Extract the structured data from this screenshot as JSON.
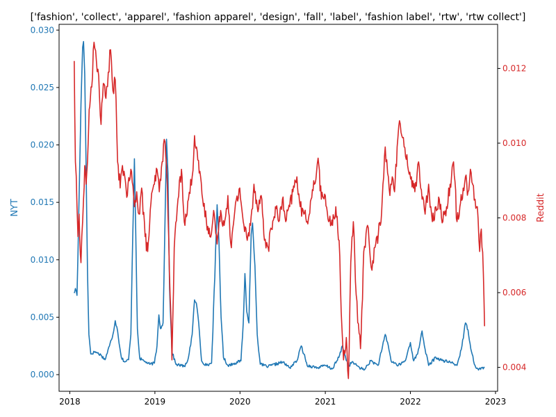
{
  "chart_data": {
    "type": "line",
    "title": "['fashion', 'collect', 'apparel', 'fashion apparel', 'design', 'fall', 'label', 'fashion label', 'rtw', 'rtw collect']",
    "xlabel": "",
    "x_ticks": [
      "2018",
      "2019",
      "2020",
      "2021",
      "2022",
      "2023"
    ],
    "xlim": [
      "2017-11-16",
      "2023-01-10"
    ],
    "left_axis": {
      "label": "NYT",
      "color": "#1f77b4",
      "ylim": [
        -0.00145,
        0.0305
      ],
      "ticks": [
        "0.000",
        "0.005",
        "0.010",
        "0.015",
        "0.020",
        "0.025",
        "0.030"
      ]
    },
    "right_axis": {
      "label": "Reddit",
      "color": "#d62728",
      "ylim": [
        0.00336,
        0.01318
      ],
      "ticks": [
        "0.004",
        "0.006",
        "0.008",
        "0.010",
        "0.012"
      ]
    },
    "grid": false,
    "series": [
      {
        "name": "NYT",
        "axis": "left",
        "color": "#1f77b4",
        "points": [
          [
            "2018-01-20",
            0.0071
          ],
          [
            "2018-01-25",
            0.0075
          ],
          [
            "2018-02-01",
            0.0069
          ],
          [
            "2018-02-05",
            0.0105
          ],
          [
            "2018-02-12",
            0.0175
          ],
          [
            "2018-02-18",
            0.0235
          ],
          [
            "2018-02-25",
            0.0285
          ],
          [
            "2018-03-01",
            0.029
          ],
          [
            "2018-03-06",
            0.0262
          ],
          [
            "2018-03-12",
            0.018
          ],
          [
            "2018-03-18",
            0.009
          ],
          [
            "2018-03-24",
            0.0035
          ],
          [
            "2018-04-01",
            0.0018
          ],
          [
            "2018-04-20",
            0.002
          ],
          [
            "2018-05-15",
            0.0017
          ],
          [
            "2018-06-01",
            0.0013
          ],
          [
            "2018-06-20",
            0.0025
          ],
          [
            "2018-07-05",
            0.0035
          ],
          [
            "2018-07-15",
            0.0047
          ],
          [
            "2018-07-25",
            0.0038
          ],
          [
            "2018-08-10",
            0.0015
          ],
          [
            "2018-08-25",
            0.0011
          ],
          [
            "2018-09-10",
            0.0013
          ],
          [
            "2018-09-20",
            0.0035
          ],
          [
            "2018-09-28",
            0.012
          ],
          [
            "2018-10-05",
            0.0188
          ],
          [
            "2018-10-10",
            0.0135
          ],
          [
            "2018-10-18",
            0.004
          ],
          [
            "2018-10-28",
            0.0014
          ],
          [
            "2018-11-15",
            0.0012
          ],
          [
            "2018-12-10",
            0.0009
          ],
          [
            "2018-12-30",
            0.001
          ],
          [
            "2019-01-10",
            0.0025
          ],
          [
            "2019-01-18",
            0.0052
          ],
          [
            "2019-01-25",
            0.004
          ],
          [
            "2019-02-05",
            0.0045
          ],
          [
            "2019-02-12",
            0.012
          ],
          [
            "2019-02-20",
            0.0205
          ],
          [
            "2019-02-26",
            0.0175
          ],
          [
            "2019-03-05",
            0.0075
          ],
          [
            "2019-03-15",
            0.002
          ],
          [
            "2019-04-01",
            0.0009
          ],
          [
            "2019-04-25",
            0.0008
          ],
          [
            "2019-05-10",
            0.0007
          ],
          [
            "2019-05-25",
            0.0015
          ],
          [
            "2019-06-10",
            0.0035
          ],
          [
            "2019-06-20",
            0.0065
          ],
          [
            "2019-06-28",
            0.0062
          ],
          [
            "2019-07-08",
            0.0045
          ],
          [
            "2019-07-20",
            0.0012
          ],
          [
            "2019-08-10",
            0.0008
          ],
          [
            "2019-09-01",
            0.001
          ],
          [
            "2019-09-15",
            0.0085
          ],
          [
            "2019-09-25",
            0.0148
          ],
          [
            "2019-10-03",
            0.0115
          ],
          [
            "2019-10-12",
            0.005
          ],
          [
            "2019-10-22",
            0.0015
          ],
          [
            "2019-11-10",
            0.0008
          ],
          [
            "2019-12-10",
            0.001
          ],
          [
            "2020-01-05",
            0.0012
          ],
          [
            "2020-01-15",
            0.0045
          ],
          [
            "2020-01-22",
            0.0088
          ],
          [
            "2020-01-30",
            0.0055
          ],
          [
            "2020-02-08",
            0.0045
          ],
          [
            "2020-02-18",
            0.0122
          ],
          [
            "2020-02-24",
            0.0132
          ],
          [
            "2020-03-05",
            0.0095
          ],
          [
            "2020-03-15",
            0.0035
          ],
          [
            "2020-03-28",
            0.0009
          ],
          [
            "2020-05-01",
            0.0007
          ],
          [
            "2020-07-01",
            0.0011
          ],
          [
            "2020-08-01",
            0.0006
          ],
          [
            "2020-09-01",
            0.0012
          ],
          [
            "2020-09-20",
            0.0025
          ],
          [
            "2020-10-01",
            0.0018
          ],
          [
            "2020-10-15",
            0.0008
          ],
          [
            "2020-12-01",
            0.0006
          ],
          [
            "2020-12-31",
            0.0008
          ],
          [
            "2021-01-31",
            0.0005
          ],
          [
            "2021-02-28",
            0.0015
          ],
          [
            "2021-03-15",
            0.0025
          ],
          [
            "2021-03-25",
            0.0018
          ],
          [
            "2021-04-10",
            0.0007
          ],
          [
            "2021-04-25",
            0.0011
          ],
          [
            "2021-05-15",
            0.0008
          ],
          [
            "2021-06-15",
            0.0004
          ],
          [
            "2021-07-15",
            0.0012
          ],
          [
            "2021-08-15",
            0.0008
          ],
          [
            "2021-09-01",
            0.0022
          ],
          [
            "2021-09-15",
            0.0035
          ],
          [
            "2021-09-25",
            0.0028
          ],
          [
            "2021-10-10",
            0.0012
          ],
          [
            "2021-11-10",
            0.0008
          ],
          [
            "2021-12-10",
            0.0012
          ],
          [
            "2022-01-01",
            0.0028
          ],
          [
            "2022-01-15",
            0.0012
          ],
          [
            "2022-02-01",
            0.0018
          ],
          [
            "2022-02-20",
            0.0038
          ],
          [
            "2022-03-05",
            0.0022
          ],
          [
            "2022-03-20",
            0.0008
          ],
          [
            "2022-04-20",
            0.0015
          ],
          [
            "2022-05-20",
            0.0012
          ],
          [
            "2022-06-20",
            0.0011
          ],
          [
            "2022-07-20",
            0.0008
          ],
          [
            "2022-08-10",
            0.0025
          ],
          [
            "2022-08-25",
            0.0045
          ],
          [
            "2022-09-05",
            0.0039
          ],
          [
            "2022-09-20",
            0.002
          ],
          [
            "2022-10-05",
            0.0008
          ],
          [
            "2022-10-20",
            0.0004
          ],
          [
            "2022-11-01",
            0.0006
          ],
          [
            "2022-11-15",
            0.0006
          ]
        ]
      },
      {
        "name": "Reddit",
        "axis": "right",
        "color": "#d62728",
        "points": [
          [
            "2018-01-20",
            0.0122
          ],
          [
            "2018-01-25",
            0.0095
          ],
          [
            "2018-02-01",
            0.0083
          ],
          [
            "2018-02-05",
            0.0075
          ],
          [
            "2018-02-10",
            0.0081
          ],
          [
            "2018-02-18",
            0.0068
          ],
          [
            "2018-02-25",
            0.0079
          ],
          [
            "2018-03-01",
            0.0085
          ],
          [
            "2018-03-06",
            0.0094
          ],
          [
            "2018-03-12",
            0.0089
          ],
          [
            "2018-03-18",
            0.0095
          ],
          [
            "2018-03-25",
            0.0109
          ],
          [
            "2018-04-05",
            0.0115
          ],
          [
            "2018-04-15",
            0.0127
          ],
          [
            "2018-04-25",
            0.0122
          ],
          [
            "2018-05-05",
            0.0118
          ],
          [
            "2018-05-15",
            0.0105
          ],
          [
            "2018-05-25",
            0.0116
          ],
          [
            "2018-06-05",
            0.0112
          ],
          [
            "2018-06-15",
            0.0119
          ],
          [
            "2018-06-25",
            0.0125
          ],
          [
            "2018-07-05",
            0.0114
          ],
          [
            "2018-07-15",
            0.0117
          ],
          [
            "2018-07-25",
            0.0095
          ],
          [
            "2018-08-05",
            0.0088
          ],
          [
            "2018-08-15",
            0.0094
          ],
          [
            "2018-08-25",
            0.0091
          ],
          [
            "2018-09-05",
            0.0086
          ],
          [
            "2018-09-20",
            0.0093
          ],
          [
            "2018-10-05",
            0.0083
          ],
          [
            "2018-10-15",
            0.0087
          ],
          [
            "2018-10-25",
            0.0081
          ],
          [
            "2018-11-05",
            0.0088
          ],
          [
            "2018-11-20",
            0.0075
          ],
          [
            "2018-12-01",
            0.0071
          ],
          [
            "2018-12-15",
            0.0084
          ],
          [
            "2018-12-30",
            0.0089
          ],
          [
            "2019-01-10",
            0.0093
          ],
          [
            "2019-01-20",
            0.0087
          ],
          [
            "2019-02-01",
            0.0095
          ],
          [
            "2019-02-10",
            0.0101
          ],
          [
            "2019-02-20",
            0.0094
          ],
          [
            "2019-03-01",
            0.0075
          ],
          [
            "2019-03-10",
            0.0055
          ],
          [
            "2019-03-15",
            0.0042
          ],
          [
            "2019-03-25",
            0.0072
          ],
          [
            "2019-04-10",
            0.0085
          ],
          [
            "2019-04-25",
            0.0093
          ],
          [
            "2019-05-10",
            0.0078
          ],
          [
            "2019-05-25",
            0.0085
          ],
          [
            "2019-06-10",
            0.0091
          ],
          [
            "2019-06-20",
            0.0102
          ],
          [
            "2019-07-01",
            0.0098
          ],
          [
            "2019-07-10",
            0.0092
          ],
          [
            "2019-07-25",
            0.0085
          ],
          [
            "2019-08-10",
            0.0079
          ],
          [
            "2019-08-25",
            0.0075
          ],
          [
            "2019-09-10",
            0.0082
          ],
          [
            "2019-09-25",
            0.0073
          ],
          [
            "2019-10-10",
            0.0082
          ],
          [
            "2019-10-25",
            0.0078
          ],
          [
            "2019-11-10",
            0.0086
          ],
          [
            "2019-11-25",
            0.0072
          ],
          [
            "2019-12-10",
            0.0082
          ],
          [
            "2019-12-31",
            0.0088
          ],
          [
            "2020-01-15",
            0.0079
          ],
          [
            "2020-02-01",
            0.0074
          ],
          [
            "2020-02-15",
            0.0078
          ],
          [
            "2020-03-01",
            0.0089
          ],
          [
            "2020-03-15",
            0.0083
          ],
          [
            "2020-04-01",
            0.0086
          ],
          [
            "2020-04-15",
            0.0074
          ],
          [
            "2020-05-01",
            0.0072
          ],
          [
            "2020-05-15",
            0.0077
          ],
          [
            "2020-06-01",
            0.0083
          ],
          [
            "2020-06-15",
            0.0079
          ],
          [
            "2020-07-01",
            0.0085
          ],
          [
            "2020-07-15",
            0.0079
          ],
          [
            "2020-08-01",
            0.0083
          ],
          [
            "2020-08-15",
            0.0087
          ],
          [
            "2020-09-01",
            0.0091
          ],
          [
            "2020-09-15",
            0.0083
          ],
          [
            "2020-10-01",
            0.0081
          ],
          [
            "2020-10-15",
            0.0079
          ],
          [
            "2020-11-01",
            0.0085
          ],
          [
            "2020-11-15",
            0.0089
          ],
          [
            "2020-12-01",
            0.0096
          ],
          [
            "2020-12-15",
            0.0085
          ],
          [
            "2021-01-01",
            0.0086
          ],
          [
            "2021-01-15",
            0.0079
          ],
          [
            "2021-02-01",
            0.0078
          ],
          [
            "2021-02-15",
            0.0083
          ],
          [
            "2021-03-01",
            0.0074
          ],
          [
            "2021-03-10",
            0.0055
          ],
          [
            "2021-03-20",
            0.0042
          ],
          [
            "2021-04-01",
            0.0048
          ],
          [
            "2021-04-10",
            0.0037
          ],
          [
            "2021-04-20",
            0.0068
          ],
          [
            "2021-05-01",
            0.0079
          ],
          [
            "2021-05-10",
            0.0063
          ],
          [
            "2021-05-20",
            0.0052
          ],
          [
            "2021-06-01",
            0.0045
          ],
          [
            "2021-06-15",
            0.0071
          ],
          [
            "2021-07-01",
            0.0078
          ],
          [
            "2021-07-20",
            0.0066
          ],
          [
            "2021-08-05",
            0.0073
          ],
          [
            "2021-08-25",
            0.0078
          ],
          [
            "2021-09-05",
            0.0089
          ],
          [
            "2021-09-15",
            0.0099
          ],
          [
            "2021-09-25",
            0.0092
          ],
          [
            "2021-10-05",
            0.0086
          ],
          [
            "2021-10-15",
            0.0091
          ],
          [
            "2021-10-25",
            0.0087
          ],
          [
            "2021-11-05",
            0.0099
          ],
          [
            "2021-11-15",
            0.0106
          ],
          [
            "2021-11-25",
            0.0102
          ],
          [
            "2021-12-05",
            0.0099
          ],
          [
            "2021-12-20",
            0.0094
          ],
          [
            "2022-01-05",
            0.0091
          ],
          [
            "2022-01-20",
            0.0087
          ],
          [
            "2022-02-05",
            0.0095
          ],
          [
            "2022-02-20",
            0.0085
          ],
          [
            "2022-03-05",
            0.0081
          ],
          [
            "2022-03-20",
            0.0089
          ],
          [
            "2022-04-05",
            0.0079
          ],
          [
            "2022-04-20",
            0.0083
          ],
          [
            "2022-05-05",
            0.0085
          ],
          [
            "2022-05-20",
            0.0079
          ],
          [
            "2022-06-05",
            0.0083
          ],
          [
            "2022-06-20",
            0.0089
          ],
          [
            "2022-07-05",
            0.0095
          ],
          [
            "2022-07-20",
            0.0079
          ],
          [
            "2022-08-01",
            0.0083
          ],
          [
            "2022-08-15",
            0.0088
          ],
          [
            "2022-08-25",
            0.0091
          ],
          [
            "2022-09-05",
            0.0087
          ],
          [
            "2022-09-15",
            0.0093
          ],
          [
            "2022-09-25",
            0.0089
          ],
          [
            "2022-10-05",
            0.0085
          ],
          [
            "2022-10-15",
            0.0083
          ],
          [
            "2022-10-25",
            0.0071
          ],
          [
            "2022-11-01",
            0.0077
          ],
          [
            "2022-11-10",
            0.0065
          ],
          [
            "2022-11-15",
            0.0051
          ]
        ]
      }
    ]
  }
}
